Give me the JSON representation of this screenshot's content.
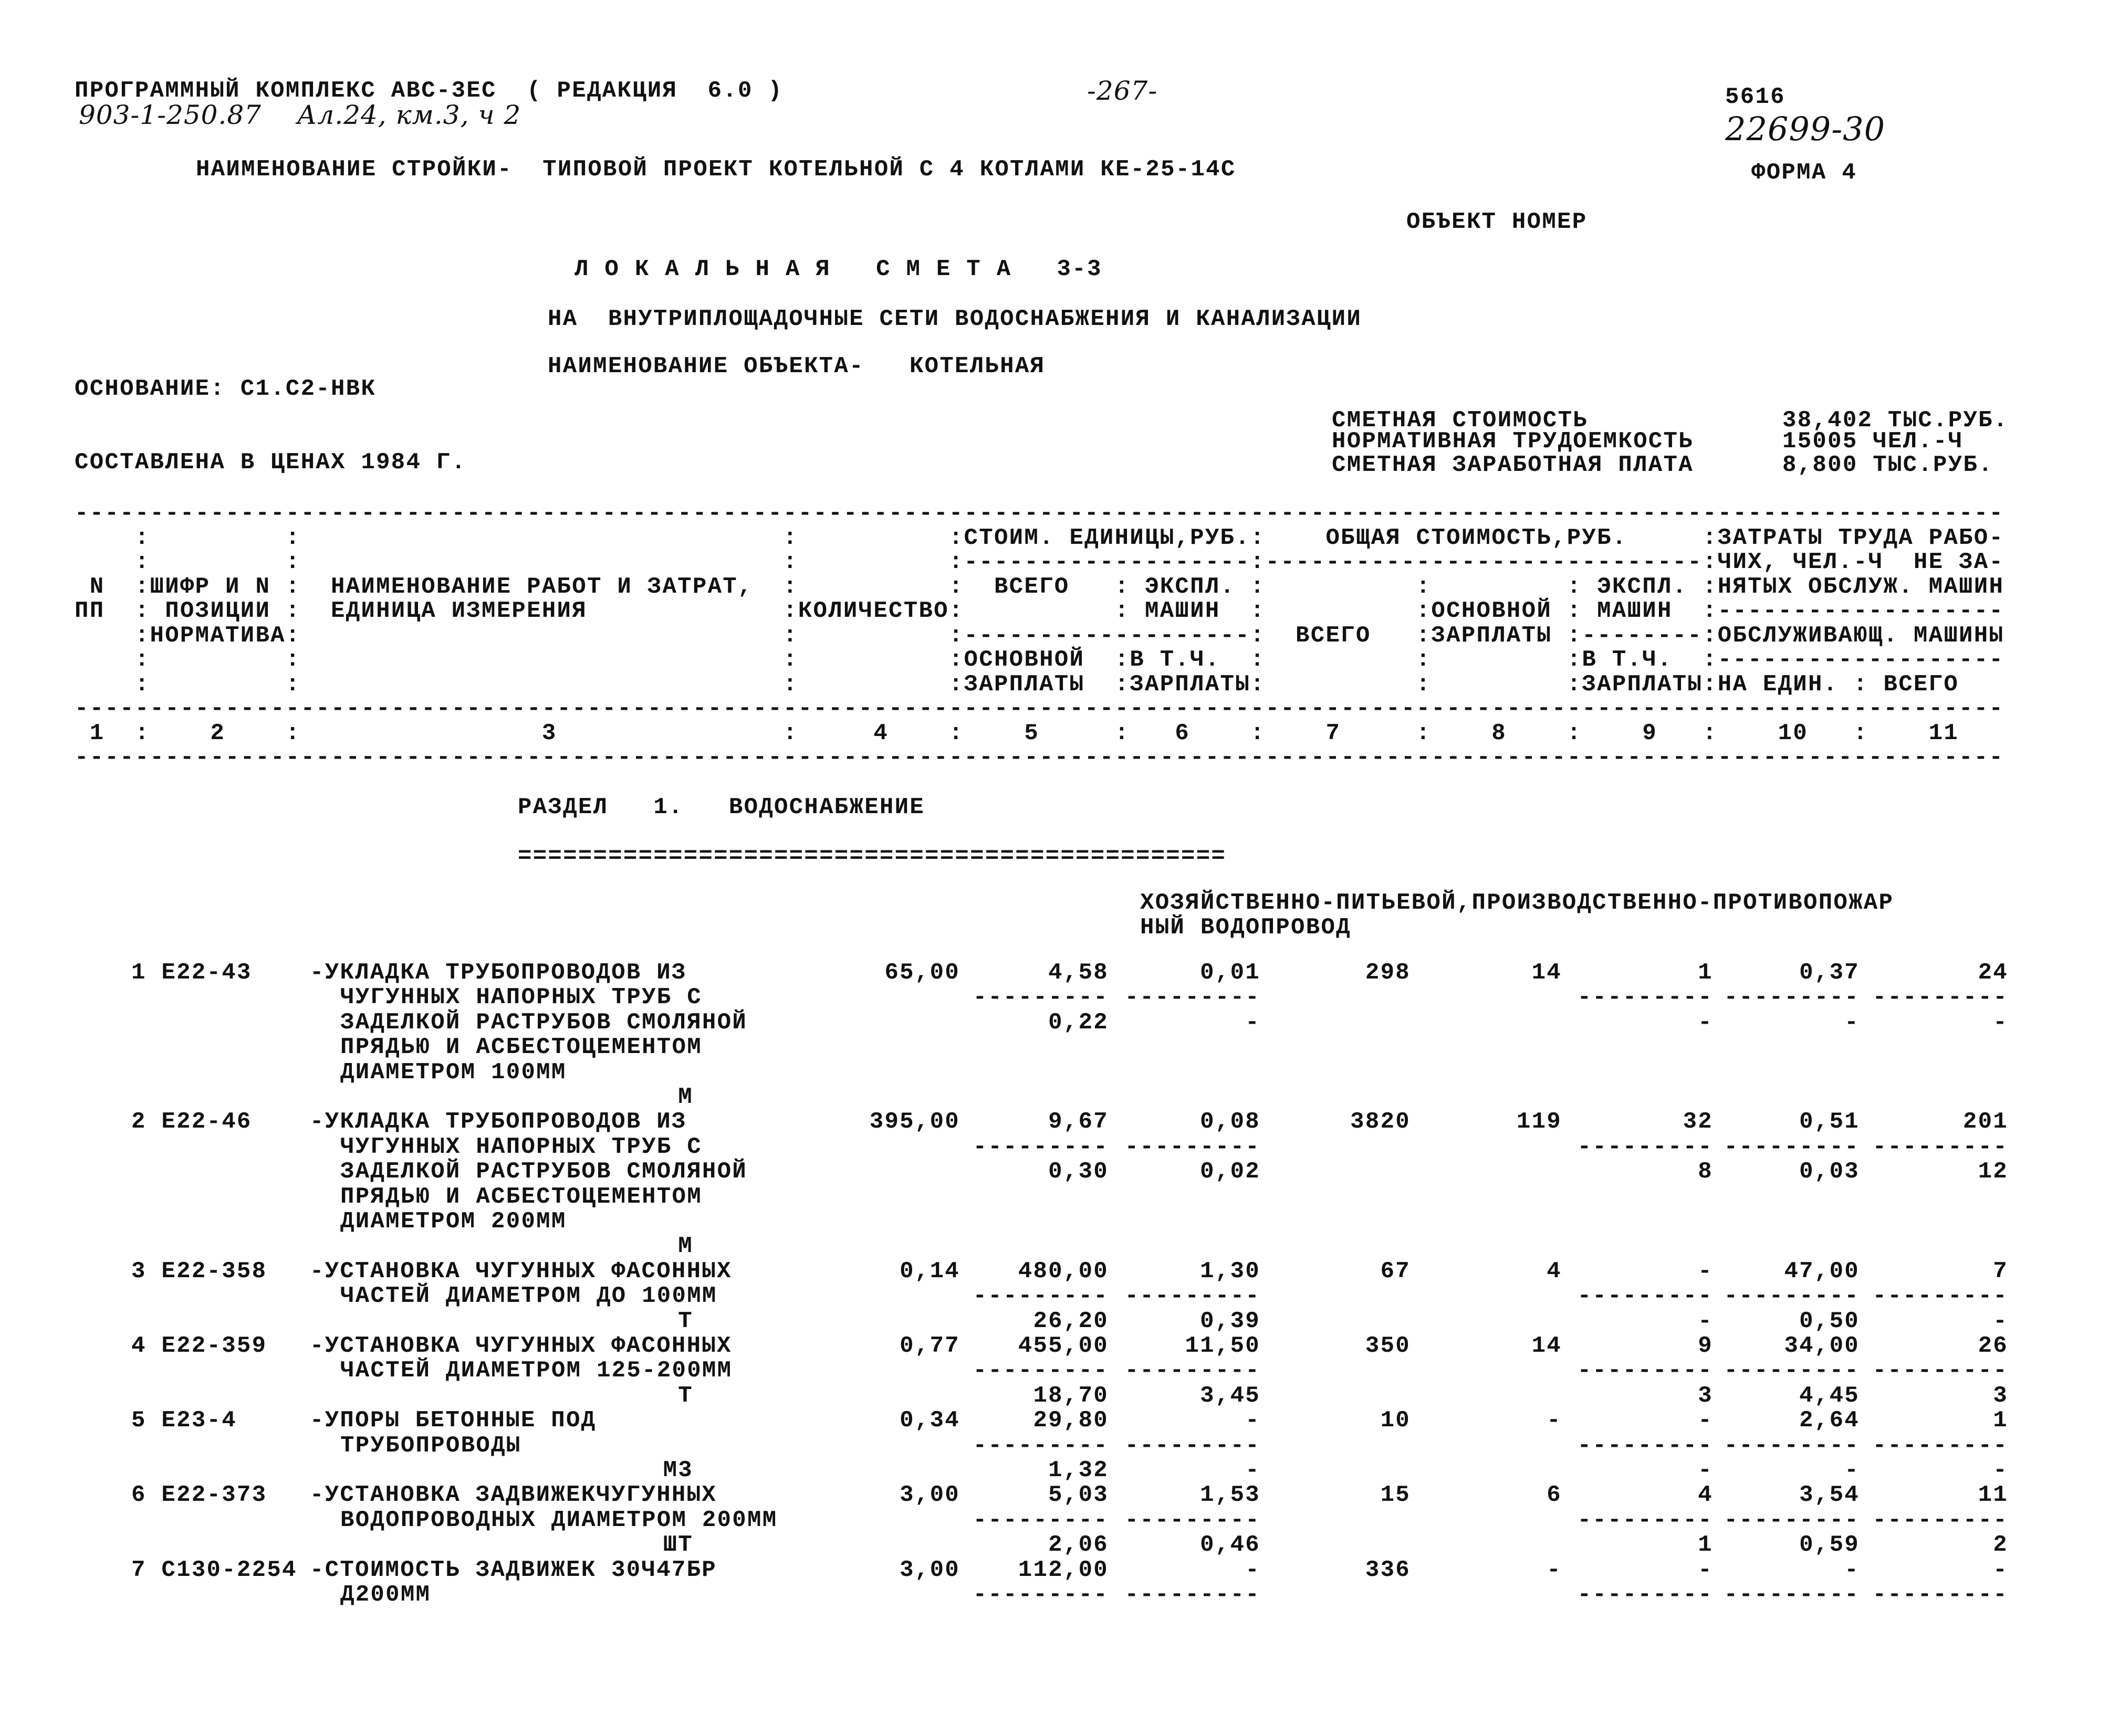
{
  "top": {
    "program_line": "ПРОГРАММНЫЙ КОМПЛЕКС АВС-3ЕС  ( РЕДАКЦИЯ  6.0 )",
    "handwritten_ref": "903-1-250.87    Ал.24, км.3, ч 2",
    "page_number": "-267-",
    "doc_number": "5616",
    "handwritten_code": "22699-30",
    "form": "ФОРМА 4",
    "construction_name": "НАИМЕНОВАНИЕ СТРОЙКИ-  ТИПОВОЙ ПРОЕКТ КОТЕЛЬНОЙ С 4 КОТЛАМИ КЕ-25-14С",
    "object_number": "ОБЪЕКТ НОМЕР",
    "title": "Л О К А Л Ь Н А Я   С М Е Т А   3-3",
    "subtitle": "НА  ВНУТРИПЛОЩАДОЧНЫЕ СЕТИ ВОДОСНАБЖЕНИЯ И КАНАЛИЗАЦИИ",
    "object_name": "НАИМЕНОВАНИЕ ОБЪЕКТА-   КОТЕЛЬНАЯ",
    "basis": "ОСНОВАНИЕ: С1.С2-НВК",
    "prices": "СОСТАВЛЕНА В ЦЕНАХ 1984 Г."
  },
  "summary": [
    {
      "label": "СМЕТНАЯ СТОИМОСТЬ",
      "value": "38,402 ТЫС.РУБ."
    },
    {
      "label": "НОРМАТИВНАЯ ТРУДОЕМКОСТЬ",
      "value": "15005 ЧЕЛ.-Ч"
    },
    {
      "label": "СМЕТНАЯ ЗАРАБОТНАЯ ПЛАТА",
      "value": "8,800 ТЫС.РУБ."
    }
  ],
  "table_header": {
    "lines": [
      "--------------------------------------------------------------------------------------------------------------------------------",
      "    :         :                                :          :СТОИМ. ЕДИНИЦЫ,РУБ.:    ОБЩАЯ СТОИМОСТЬ,РУБ.     :ЗАТРАТЫ ТРУДА РАБО-",
      "    :         :                                :          :-------------------:-----------------------------:ЧИХ, ЧЕЛ.-Ч  НЕ ЗА-",
      " N  :ШИФР И N :  НАИМЕНОВАНИЕ РАБОТ И ЗАТРАТ,  :          :  ВСЕГО   : ЭКСПЛ. :          :         : ЭКСПЛ. :НЯТЫХ ОБСЛУЖ. МАШИН",
      "ПП  : ПОЗИЦИИ :  ЕДИНИЦА ИЗМЕРЕНИЯ             :КОЛИЧЕСТВО:          : МАШИН  :          :ОСНОВНОЙ : МАШИН  :-------------------",
      "    :НОРМАТИВА:                                :          :-------------------:  ВСЕГО   :ЗАРПЛАТЫ :--------:ОБСЛУЖИВАЮЩ. МАШИНЫ",
      "    :         :                                :          :ОСНОВНОЙ  :В Т.Ч.  :          :         :В Т.Ч.  :-------------------",
      "    :         :                                :          :ЗАРПЛАТЫ  :ЗАРПЛАТЫ:          :         :ЗАРПЛАТЫ:НА ЕДИН. : ВСЕГО",
      "--------------------------------------------------------------------------------------------------------------------------------",
      " 1  :    2    :                3               :     4    :    5     :   6    :    7     :    8    :    9   :    10   :    11",
      "--------------------------------------------------------------------------------------------------------------------------------"
    ]
  },
  "section": {
    "title": "РАЗДЕЛ   1.   ВОДОСНАБЖЕНИЕ",
    "underline": "===============================================",
    "subtitle_1": "ХОЗЯЙСТВЕННО-ПИТЬЕВОЙ,ПРОИЗВОДСТВЕННО-ПРОТИВОПОЖАР",
    "subtitle_2": "НЫЙ ВОДОПРОВОД"
  },
  "dash_short": "---------",
  "rows": [
    {
      "num": "1",
      "code": "Е22-43",
      "desc": [
        "-УКЛАДКА ТРУБОПРОВОДОВ ИЗ",
        "ЧУГУННЫХ НАПОРНЫХ ТРУБ С",
        "ЗАДЕЛКОЙ РАСТРУБОВ СМОЛЯНОЙ",
        "ПРЯДЬЮ И АСБЕСТОЦЕМЕНТОМ",
        "ДИАМЕТРОМ 100ММ"
      ],
      "unit": "М",
      "main": [
        "65,00",
        "4,58",
        "0,01",
        "298",
        "14",
        "1",
        "0,37",
        "24"
      ],
      "second": [
        "0,22",
        "-",
        "-",
        "-",
        "-"
      ]
    },
    {
      "num": "2",
      "code": "Е22-46",
      "desc": [
        "-УКЛАДКА ТРУБОПРОВОДОВ ИЗ",
        "ЧУГУННЫХ НАПОРНЫХ ТРУБ С",
        "ЗАДЕЛКОЙ РАСТРУБОВ СМОЛЯНОЙ",
        "ПРЯДЬЮ И АСБЕСТОЦЕМЕНТОМ",
        "ДИАМЕТРОМ 200ММ"
      ],
      "unit": "М",
      "main": [
        "395,00",
        "9,67",
        "0,08",
        "3820",
        "119",
        "32",
        "0,51",
        "201"
      ],
      "second": [
        "0,30",
        "0,02",
        "8",
        "0,03",
        "12"
      ]
    },
    {
      "num": "3",
      "code": "Е22-358",
      "desc": [
        "-УСТАНОВКА ЧУГУННЫХ ФАСОННЫХ",
        "ЧАСТЕЙ ДИАМЕТРОМ ДО 100ММ"
      ],
      "unit": "Т",
      "main": [
        "0,14",
        "480,00",
        "1,30",
        "67",
        "4",
        "-",
        "47,00",
        "7"
      ],
      "second": [
        "26,20",
        "0,39",
        "-",
        "0,50",
        "-"
      ]
    },
    {
      "num": "4",
      "code": "Е22-359",
      "desc": [
        "-УСТАНОВКА ЧУГУННЫХ ФАСОННЫХ",
        "ЧАСТЕЙ ДИАМЕТРОМ 125-200ММ"
      ],
      "unit": "Т",
      "main": [
        "0,77",
        "455,00",
        "11,50",
        "350",
        "14",
        "9",
        "34,00",
        "26"
      ],
      "second": [
        "18,70",
        "3,45",
        "3",
        "4,45",
        "3"
      ]
    },
    {
      "num": "5",
      "code": "Е23-4",
      "desc": [
        "-УПОРЫ БЕТОННЫЕ ПОД",
        "ТРУБОПРОВОДЫ"
      ],
      "unit": "М3",
      "main": [
        "0,34",
        "29,80",
        "-",
        "10",
        "-",
        "-",
        "2,64",
        "1"
      ],
      "second": [
        "1,32",
        "-",
        "-",
        "-",
        "-"
      ]
    },
    {
      "num": "6",
      "code": "Е22-373",
      "desc": [
        "-УСТАНОВКА ЗАДВИЖЕКЧУГУННЫХ",
        "ВОДОПРОВОДНЫХ ДИАМЕТРОМ 200ММ"
      ],
      "unit": "ШТ",
      "main": [
        "3,00",
        "5,03",
        "1,53",
        "15",
        "6",
        "4",
        "3,54",
        "11"
      ],
      "second": [
        "2,06",
        "0,46",
        "1",
        "0,59",
        "2"
      ]
    },
    {
      "num": "7",
      "code": "С130-2254",
      "desc": [
        "-СТОИМОСТЬ ЗАДВИЖЕК 30Ч47БР",
        "Д200ММ"
      ],
      "unit": "",
      "main": [
        "3,00",
        "112,00",
        "-",
        "336",
        "-",
        "-",
        "-",
        "-"
      ],
      "second": []
    }
  ]
}
